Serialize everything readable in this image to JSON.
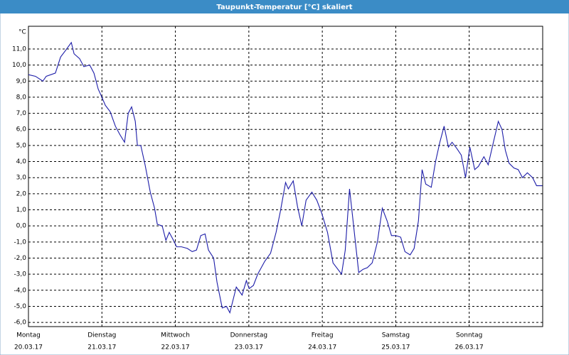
{
  "chart_data": {
    "type": "line",
    "title": "Taupunkt-Temperatur [°C] skaliert",
    "y_label": "°C",
    "x": [
      0,
      2.3,
      4.7,
      5.8,
      8.8,
      10.5,
      12.1,
      14,
      14.9,
      16.7,
      18.1,
      20,
      21.4,
      22.8,
      24,
      25.1,
      26.7,
      28.4,
      29.8,
      31.4,
      32.6,
      33.7,
      34.9,
      35.6,
      36.7,
      38.1,
      39.8,
      41.2,
      42.1,
      43.7,
      44.9,
      46,
      47.4,
      48.4,
      50,
      51.9,
      53.5,
      54.9,
      56.3,
      57.7,
      58.8,
      60.5,
      61.6,
      63.3,
      64.7,
      65.8,
      67.9,
      69.8,
      71.2,
      72.1,
      73.5,
      74.9,
      77.2,
      79.1,
      80.9,
      82.3,
      84,
      84.9,
      86.5,
      87.9,
      89.3,
      90.7,
      92.6,
      94.2,
      95.8,
      97.7,
      99.5,
      102.3,
      103.5,
      104.9,
      106,
      107.9,
      109.3,
      110.7,
      112.3,
      114,
      115.6,
      117.2,
      118.6,
      120,
      121.6,
      123,
      124.7,
      126,
      127.4,
      128.6,
      129.8,
      131.6,
      133,
      134.4,
      135.8,
      137.2,
      138.4,
      140,
      141.4,
      142.8,
      144.2,
      145.8,
      147,
      148.8,
      150.2,
      151.9,
      153.5,
      154.7,
      155.8,
      157,
      158.6,
      160,
      161.4,
      163,
      164.7,
      166,
      167.9
    ],
    "series": [
      {
        "name": "Taupunkt-Temperatur",
        "color": "#1c1ca8",
        "values": [
          9.4,
          9.3,
          9.0,
          9.3,
          9.5,
          10.5,
          10.9,
          11.4,
          10.7,
          10.4,
          9.9,
          10.0,
          9.5,
          8.5,
          8.0,
          7.5,
          7.1,
          6.2,
          5.7,
          5.2,
          7.0,
          7.4,
          6.5,
          5.0,
          5.0,
          3.8,
          2.1,
          1.1,
          0.1,
          0.0,
          -0.9,
          -0.4,
          -0.9,
          -1.3,
          -1.3,
          -1.4,
          -1.6,
          -1.5,
          -0.6,
          -0.5,
          -1.5,
          -2.0,
          -3.5,
          -5.1,
          -5.0,
          -5.4,
          -3.8,
          -4.3,
          -3.4,
          -3.9,
          -3.7,
          -3.0,
          -2.2,
          -1.7,
          -0.4,
          0.9,
          2.7,
          2.3,
          2.8,
          1.2,
          0.0,
          1.6,
          2.1,
          1.6,
          0.8,
          -0.4,
          -2.3,
          -3.0,
          -1.5,
          2.3,
          0.4,
          -2.9,
          -2.7,
          -2.6,
          -2.3,
          -1.0,
          1.1,
          0.3,
          -0.6,
          -0.6,
          -0.7,
          -1.6,
          -1.8,
          -1.4,
          0.3,
          3.5,
          2.6,
          2.4,
          4.0,
          5.2,
          6.2,
          4.9,
          5.2,
          4.8,
          4.4,
          3.0,
          4.9,
          3.5,
          3.7,
          4.3,
          3.8,
          5.2,
          6.5,
          6.0,
          4.7,
          3.9,
          3.6,
          3.5,
          3.0,
          3.3,
          3.0,
          2.5,
          2.5
        ]
      }
    ],
    "xlim": [
      0,
      168
    ],
    "xticks": [
      {
        "value": 0,
        "label": "Montag"
      },
      {
        "value": 24,
        "label": "Dienstag"
      },
      {
        "value": 48,
        "label": "Mittwoch"
      },
      {
        "value": 72,
        "label": "Donnerstag"
      },
      {
        "value": 96,
        "label": "Freitag"
      },
      {
        "value": 120,
        "label": "Samstag"
      },
      {
        "value": 144,
        "label": "Sonntag"
      }
    ],
    "xtick_dates": [
      "20.03.17",
      "21.03.17",
      "22.03.17",
      "23.03.17",
      "24.03.17",
      "25.03.17",
      "26.03.17"
    ],
    "ylim": [
      -6.26,
      12.41
    ],
    "yticks": [
      {
        "value": -6,
        "label": "-6,0"
      },
      {
        "value": -5,
        "label": "-5,0"
      },
      {
        "value": -4,
        "label": "-4,0"
      },
      {
        "value": -3,
        "label": "-3,0"
      },
      {
        "value": -2,
        "label": "-2,0"
      },
      {
        "value": -1,
        "label": "-1,0"
      },
      {
        "value": 0,
        "label": "0,0"
      },
      {
        "value": 1,
        "label": "1,0"
      },
      {
        "value": 2,
        "label": "2,0"
      },
      {
        "value": 3,
        "label": "3,0"
      },
      {
        "value": 4,
        "label": "4,0"
      },
      {
        "value": 5,
        "label": "5,0"
      },
      {
        "value": 6,
        "label": "6,0"
      },
      {
        "value": 7,
        "label": "7,0"
      },
      {
        "value": 8,
        "label": "8,0"
      },
      {
        "value": 9,
        "label": "9,0"
      },
      {
        "value": 10,
        "label": "10,0"
      },
      {
        "value": 11,
        "label": "11,0"
      }
    ],
    "grid": true
  }
}
